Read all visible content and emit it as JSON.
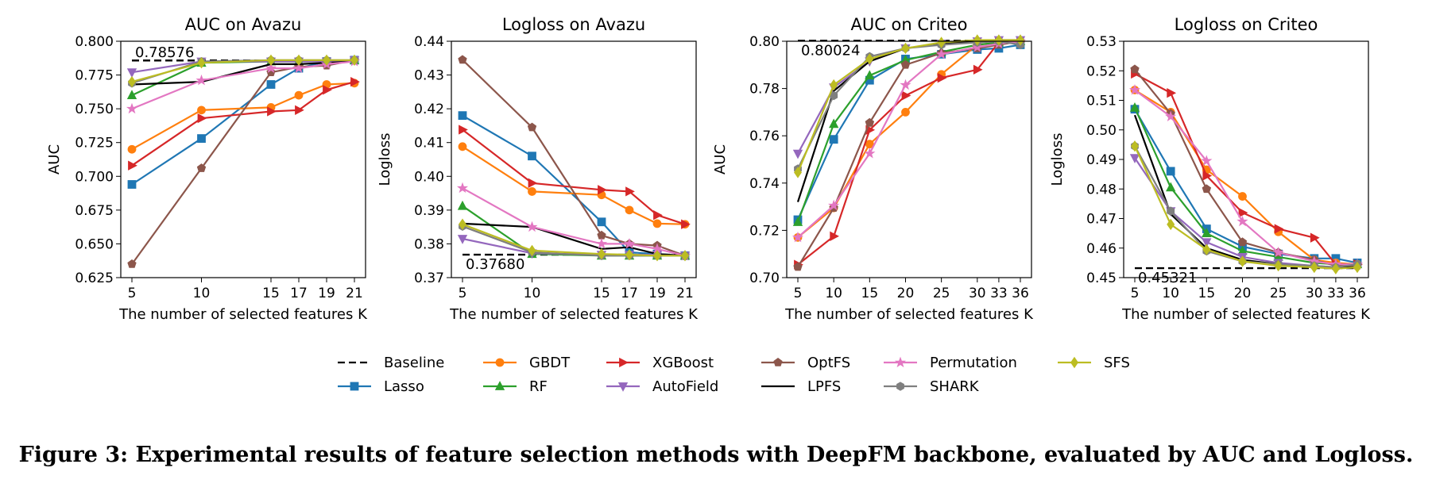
{
  "series_styles": [
    {
      "name": "Baseline",
      "color": "#000000",
      "marker": "none",
      "dash": true
    },
    {
      "name": "Lasso",
      "color": "#1f77b4",
      "marker": "square"
    },
    {
      "name": "GBDT",
      "color": "#ff7f0e",
      "marker": "circle"
    },
    {
      "name": "RF",
      "color": "#2ca02c",
      "marker": "triangle-up"
    },
    {
      "name": "XGBoost",
      "color": "#d62728",
      "marker": "triangle-right"
    },
    {
      "name": "AutoField",
      "color": "#9467bd",
      "marker": "triangle-down"
    },
    {
      "name": "OptFS",
      "color": "#8c564b",
      "marker": "pentagon"
    },
    {
      "name": "LPFS",
      "color": "#000000",
      "marker": "none"
    },
    {
      "name": "Permutation",
      "color": "#e377c2",
      "marker": "star"
    },
    {
      "name": "SHARK",
      "color": "#7f7f7f",
      "marker": "hexagon"
    },
    {
      "name": "SFS",
      "color": "#bcbd22",
      "marker": "diamond"
    }
  ],
  "legend_rows": [
    [
      "Baseline",
      "GBDT",
      "XGBoost",
      "OptFS",
      "Permutation",
      "SFS"
    ],
    [
      "Lasso",
      "RF",
      "AutoField",
      "LPFS",
      "SHARK"
    ]
  ],
  "chart_data": [
    {
      "type": "line",
      "title": "AUC on Avazu",
      "xlabel": "The number of selected features K",
      "ylabel": "AUC",
      "x": [
        5,
        10,
        15,
        17,
        19,
        21
      ],
      "xticks": [
        "5",
        "10",
        "15",
        "17",
        "19",
        "21"
      ],
      "ylim": [
        0.625,
        0.8
      ],
      "yticks": [
        "0.625",
        "0.650",
        "0.675",
        "0.700",
        "0.725",
        "0.750",
        "0.775",
        "0.800"
      ],
      "baseline": {
        "value": 0.78576,
        "label": "0.78576"
      },
      "series": [
        {
          "name": "Lasso",
          "values": [
            0.694,
            0.728,
            0.768,
            0.78,
            0.785,
            0.786
          ]
        },
        {
          "name": "GBDT",
          "values": [
            0.72,
            0.749,
            0.751,
            0.76,
            0.768,
            0.769
          ]
        },
        {
          "name": "RF",
          "values": [
            0.76,
            0.784,
            0.785,
            0.785,
            0.785,
            0.786
          ]
        },
        {
          "name": "XGBoost",
          "values": [
            0.708,
            0.743,
            0.748,
            0.749,
            0.764,
            0.77
          ]
        },
        {
          "name": "AutoField",
          "values": [
            0.777,
            0.785,
            0.785,
            0.785,
            0.785,
            0.786
          ]
        },
        {
          "name": "OptFS",
          "values": [
            0.635,
            0.706,
            0.777,
            0.781,
            0.782,
            0.786
          ]
        },
        {
          "name": "LPFS",
          "values": [
            0.768,
            0.77,
            0.783,
            0.783,
            0.784,
            0.785
          ]
        },
        {
          "name": "Permutation",
          "values": [
            0.75,
            0.771,
            0.78,
            0.78,
            0.783,
            0.785
          ]
        },
        {
          "name": "SHARK",
          "values": [
            0.769,
            0.785,
            0.786,
            0.786,
            0.786,
            0.786
          ]
        },
        {
          "name": "SFS",
          "values": [
            0.77,
            0.784,
            0.786,
            0.786,
            0.786,
            0.786
          ]
        }
      ]
    },
    {
      "type": "line",
      "title": "Logloss on Avazu",
      "xlabel": "The number of selected features K",
      "ylabel": "Logloss",
      "x": [
        5,
        10,
        15,
        17,
        19,
        21
      ],
      "xticks": [
        "5",
        "10",
        "15",
        "17",
        "19",
        "21"
      ],
      "ylim": [
        0.37,
        0.44
      ],
      "yticks": [
        "0.37",
        "0.38",
        "0.39",
        "0.40",
        "0.41",
        "0.42",
        "0.43",
        "0.44"
      ],
      "baseline": {
        "value": 0.3768,
        "label": "0.37680"
      },
      "series": [
        {
          "name": "Lasso",
          "values": [
            0.418,
            0.406,
            0.3865,
            0.3775,
            0.377,
            0.3765
          ]
        },
        {
          "name": "GBDT",
          "values": [
            0.4088,
            0.3955,
            0.3945,
            0.39,
            0.386,
            0.3858
          ]
        },
        {
          "name": "RF",
          "values": [
            0.3912,
            0.377,
            0.3765,
            0.3765,
            0.3765,
            0.3765
          ]
        },
        {
          "name": "XGBoost",
          "values": [
            0.4138,
            0.398,
            0.396,
            0.3955,
            0.3885,
            0.3858
          ]
        },
        {
          "name": "AutoField",
          "values": [
            0.3815,
            0.3772,
            0.3768,
            0.3768,
            0.3768,
            0.3765
          ]
        },
        {
          "name": "OptFS",
          "values": [
            0.4345,
            0.4145,
            0.3825,
            0.38,
            0.3795,
            0.3765
          ]
        },
        {
          "name": "LPFS",
          "values": [
            0.386,
            0.385,
            0.3785,
            0.379,
            0.377,
            0.3765
          ]
        },
        {
          "name": "Permutation",
          "values": [
            0.3965,
            0.385,
            0.38,
            0.38,
            0.3785,
            0.3765
          ]
        },
        {
          "name": "SHARK",
          "values": [
            0.3852,
            0.3775,
            0.3765,
            0.3765,
            0.3765,
            0.3765
          ]
        },
        {
          "name": "SFS",
          "values": [
            0.3858,
            0.378,
            0.377,
            0.3768,
            0.3765,
            0.3765
          ]
        }
      ]
    },
    {
      "type": "line",
      "title": "AUC on Criteo",
      "xlabel": "The number of selected features K",
      "ylabel": "AUC",
      "x": [
        5,
        10,
        15,
        20,
        25,
        30,
        33,
        36
      ],
      "xticks": [
        "5",
        "10",
        "15",
        "20",
        "25",
        "30",
        "33",
        "36"
      ],
      "ylim": [
        0.7,
        0.8
      ],
      "yticks": [
        "0.70",
        "0.72",
        "0.74",
        "0.76",
        "0.78",
        "0.80"
      ],
      "baseline": {
        "value": 0.80024,
        "label": "0.80024"
      },
      "series": [
        {
          "name": "Lasso",
          "values": [
            0.7245,
            0.7585,
            0.7835,
            0.7925,
            0.7945,
            0.7965,
            0.797,
            0.7985
          ]
        },
        {
          "name": "GBDT",
          "values": [
            0.717,
            0.7295,
            0.7565,
            0.77,
            0.786,
            0.7985,
            0.7995,
            0.8
          ]
        },
        {
          "name": "RF",
          "values": [
            0.7235,
            0.765,
            0.7855,
            0.792,
            0.7955,
            0.7985,
            0.7995,
            0.8
          ]
        },
        {
          "name": "XGBoost",
          "values": [
            0.7055,
            0.7175,
            0.7625,
            0.777,
            0.7845,
            0.788,
            0.7995,
            0.8
          ]
        },
        {
          "name": "AutoField",
          "values": [
            0.7525,
            0.7805,
            0.7915,
            0.797,
            0.799,
            0.8,
            0.8005,
            0.8005
          ]
        },
        {
          "name": "OptFS",
          "values": [
            0.7045,
            0.7295,
            0.7655,
            0.79,
            0.795,
            0.797,
            0.7985,
            0.8
          ]
        },
        {
          "name": "LPFS",
          "values": [
            0.732,
            0.779,
            0.7915,
            0.797,
            0.799,
            0.8,
            0.8,
            0.8005
          ]
        },
        {
          "name": "Permutation",
          "values": [
            0.717,
            0.7305,
            0.7525,
            0.7815,
            0.7945,
            0.7975,
            0.799,
            0.8
          ]
        },
        {
          "name": "SHARK",
          "values": [
            0.746,
            0.777,
            0.7935,
            0.797,
            0.7985,
            0.7995,
            0.8,
            0.7985
          ]
        },
        {
          "name": "SFS",
          "values": [
            0.7445,
            0.7815,
            0.7925,
            0.797,
            0.7995,
            0.8005,
            0.8005,
            0.8005
          ]
        }
      ]
    },
    {
      "type": "line",
      "title": "Logloss on Criteo",
      "xlabel": "The number of selected features K",
      "ylabel": "Logloss",
      "x": [
        5,
        10,
        15,
        20,
        25,
        30,
        33,
        36
      ],
      "xticks": [
        "5",
        "10",
        "15",
        "20",
        "25",
        "30",
        "33",
        "36"
      ],
      "ylim": [
        0.45,
        0.53
      ],
      "yticks": [
        "0.45",
        "0.46",
        "0.47",
        "0.48",
        "0.49",
        "0.50",
        "0.51",
        "0.52",
        "0.53"
      ],
      "baseline": {
        "value": 0.45321,
        "label": "0.45321"
      },
      "series": [
        {
          "name": "Lasso",
          "values": [
            0.507,
            0.486,
            0.4665,
            0.4605,
            0.458,
            0.4565,
            0.4565,
            0.455
          ]
        },
        {
          "name": "GBDT",
          "values": [
            0.5135,
            0.506,
            0.4865,
            0.4775,
            0.4655,
            0.456,
            0.455,
            0.4545
          ]
        },
        {
          "name": "RF",
          "values": [
            0.5075,
            0.4805,
            0.465,
            0.459,
            0.457,
            0.455,
            0.4545,
            0.4545
          ]
        },
        {
          "name": "XGBoost",
          "values": [
            0.519,
            0.5125,
            0.4845,
            0.472,
            0.4665,
            0.4635,
            0.4545,
            0.4545
          ]
        },
        {
          "name": "AutoField",
          "values": [
            0.4905,
            0.4725,
            0.462,
            0.457,
            0.455,
            0.454,
            0.4535,
            0.4535
          ]
        },
        {
          "name": "OptFS",
          "values": [
            0.5205,
            0.5055,
            0.48,
            0.462,
            0.4585,
            0.456,
            0.454,
            0.454
          ]
        },
        {
          "name": "LPFS",
          "values": [
            0.505,
            0.4715,
            0.46,
            0.456,
            0.4545,
            0.4535,
            0.4535,
            0.4535
          ]
        },
        {
          "name": "Permutation",
          "values": [
            0.5135,
            0.5045,
            0.4895,
            0.469,
            0.4585,
            0.4555,
            0.4545,
            0.4545
          ]
        },
        {
          "name": "SHARK",
          "values": [
            0.4945,
            0.4725,
            0.459,
            0.4555,
            0.4545,
            0.454,
            0.4535,
            0.4545
          ]
        },
        {
          "name": "SFS",
          "values": [
            0.4945,
            0.468,
            0.4595,
            0.4555,
            0.454,
            0.4535,
            0.453,
            0.4535
          ]
        }
      ]
    }
  ],
  "caption": "Figure 3: Experimental results of feature selection methods with DeepFM backbone, evaluated by AUC and Logloss."
}
